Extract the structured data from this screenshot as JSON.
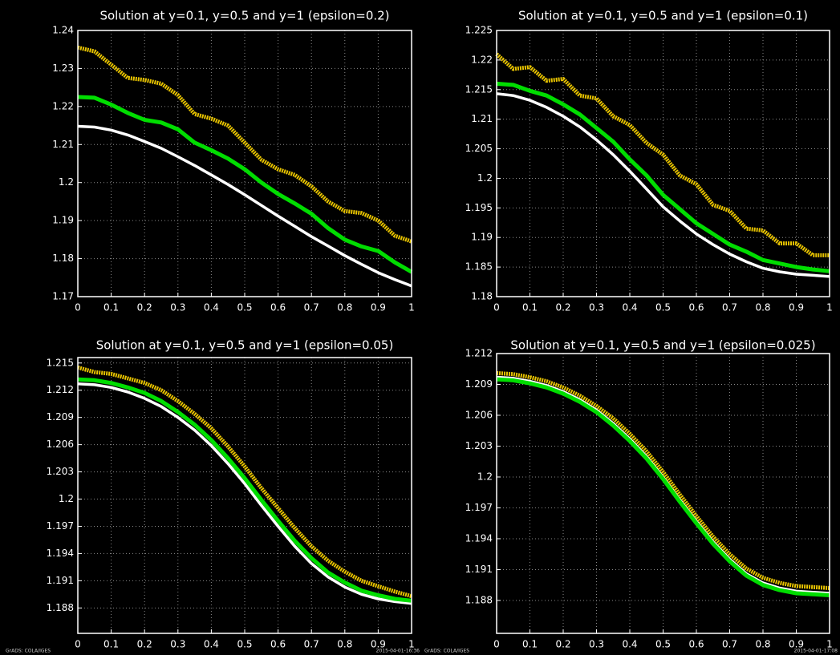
{
  "chart_data": [
    {
      "type": "line",
      "title": "Solution at y=0.1, y=0.5 and y=1 (epsilon=0.2)",
      "x": [
        0,
        0.05,
        0.1,
        0.15,
        0.2,
        0.25,
        0.3,
        0.35,
        0.4,
        0.45,
        0.5,
        0.55,
        0.6,
        0.65,
        0.7,
        0.75,
        0.8,
        0.85,
        0.9,
        0.95,
        1
      ],
      "series": [
        {
          "color": "#ffffff",
          "values": [
            1.2148,
            1.2146,
            1.2138,
            1.2125,
            1.2108,
            1.209,
            1.2068,
            1.2045,
            1.202,
            1.1995,
            1.1968,
            1.194,
            1.1912,
            1.1885,
            1.1858,
            1.1833,
            1.1808,
            1.1785,
            1.1763,
            1.1745,
            1.1728
          ]
        },
        {
          "color": "#00dd00",
          "values": [
            1.2225,
            1.2223,
            1.2205,
            1.2183,
            1.2165,
            1.2158,
            1.214,
            1.2105,
            1.2085,
            1.2063,
            1.2035,
            1.2,
            1.197,
            1.1945,
            1.1918,
            1.188,
            1.185,
            1.1832,
            1.182,
            1.179,
            1.1765
          ]
        },
        {
          "color": "#e6c200",
          "values": [
            1.2355,
            1.2345,
            1.231,
            1.2275,
            1.227,
            1.226,
            1.223,
            1.218,
            1.2168,
            1.215,
            1.2105,
            1.206,
            1.2035,
            1.202,
            1.199,
            1.195,
            1.1925,
            1.192,
            1.19,
            1.186,
            1.1845
          ]
        }
      ],
      "xlim": [
        0,
        1
      ],
      "xticks": [
        0,
        0.1,
        0.2,
        0.3,
        0.4,
        0.5,
        0.6,
        0.7,
        0.8,
        0.9,
        1
      ],
      "ylim": [
        1.17,
        1.24
      ],
      "yticks": [
        1.17,
        1.18,
        1.19,
        1.2,
        1.21,
        1.22,
        1.23,
        1.24
      ],
      "grid": true
    },
    {
      "type": "line",
      "title": "Solution at y=0.1, y=0.5 and y=1 (epsilon=0.1)",
      "x": [
        0,
        0.05,
        0.1,
        0.15,
        0.2,
        0.25,
        0.3,
        0.35,
        0.4,
        0.45,
        0.5,
        0.55,
        0.6,
        0.65,
        0.7,
        0.75,
        0.8,
        0.85,
        0.9,
        0.95,
        1
      ],
      "series": [
        {
          "color": "#ffffff",
          "values": [
            1.2143,
            1.214,
            1.2132,
            1.212,
            1.2105,
            1.2087,
            1.2065,
            1.204,
            1.2012,
            1.1982,
            1.1952,
            1.1928,
            1.1906,
            1.1888,
            1.1872,
            1.1859,
            1.1848,
            1.1842,
            1.1838,
            1.1836,
            1.1834
          ]
        },
        {
          "color": "#00dd00",
          "values": [
            1.216,
            1.2158,
            1.2148,
            1.214,
            1.2125,
            1.2108,
            1.2085,
            1.2062,
            1.2032,
            1.2005,
            1.1972,
            1.1948,
            1.1924,
            1.1906,
            1.1888,
            1.1876,
            1.1862,
            1.1856,
            1.185,
            1.1846,
            1.1843
          ]
        },
        {
          "color": "#e6c200",
          "values": [
            1.221,
            1.2185,
            1.2188,
            1.2165,
            1.2168,
            1.214,
            1.2135,
            1.2105,
            1.209,
            1.206,
            1.204,
            1.2005,
            1.199,
            1.1955,
            1.1945,
            1.1915,
            1.1912,
            1.189,
            1.189,
            1.187,
            1.187
          ]
        }
      ],
      "xlim": [
        0,
        1
      ],
      "xticks": [
        0,
        0.1,
        0.2,
        0.3,
        0.4,
        0.5,
        0.6,
        0.7,
        0.8,
        0.9,
        1
      ],
      "ylim": [
        1.18,
        1.225
      ],
      "yticks": [
        1.18,
        1.185,
        1.19,
        1.195,
        1.2,
        1.205,
        1.21,
        1.215,
        1.22,
        1.225
      ],
      "grid": true
    },
    {
      "type": "line",
      "title": "Solution at y=0.1, y=0.5 and y=1 (epsilon=0.05)",
      "credit": "GrADS: COLA/IGES",
      "timestamp": "2015-04-01-16:36",
      "x": [
        0,
        0.05,
        0.1,
        0.15,
        0.2,
        0.25,
        0.3,
        0.35,
        0.4,
        0.45,
        0.5,
        0.55,
        0.6,
        0.65,
        0.7,
        0.75,
        0.8,
        0.85,
        0.9,
        0.95,
        1
      ],
      "series": [
        {
          "color": "#ffffff",
          "values": [
            1.2127,
            1.2126,
            1.2123,
            1.2118,
            1.2111,
            1.2102,
            1.209,
            1.2076,
            1.2059,
            1.2039,
            1.2017,
            1.1993,
            1.197,
            1.1948,
            1.1929,
            1.1914,
            1.1903,
            1.1895,
            1.189,
            1.1887,
            1.1885
          ]
        },
        {
          "color": "#00dd00",
          "values": [
            1.2132,
            1.2131,
            1.2128,
            1.2123,
            1.2117,
            1.2108,
            1.2096,
            1.2082,
            1.2065,
            1.2045,
            1.2023,
            1.1999,
            1.1976,
            1.1954,
            1.1935,
            1.1919,
            1.1908,
            1.1899,
            1.1894,
            1.189,
            1.1888
          ]
        },
        {
          "color": "#e6c200",
          "values": [
            1.2145,
            1.214,
            1.2138,
            1.2133,
            1.2128,
            1.212,
            1.2108,
            1.2094,
            1.2078,
            1.2058,
            1.2036,
            1.2012,
            1.199,
            1.1968,
            1.1948,
            1.1932,
            1.192,
            1.191,
            1.1904,
            1.1898,
            1.1893
          ]
        }
      ],
      "xlim": [
        0,
        1
      ],
      "xticks": [
        0,
        0.1,
        0.2,
        0.3,
        0.4,
        0.5,
        0.6,
        0.7,
        0.8,
        0.9,
        1
      ],
      "ylim": [
        1.1852,
        1.2156
      ],
      "yticks": [
        1.188,
        1.191,
        1.194,
        1.197,
        1.2,
        1.203,
        1.206,
        1.209,
        1.212,
        1.215
      ],
      "grid": true
    },
    {
      "type": "line",
      "title": "Solution at y=0.1, y=0.5 and y=1 (epsilon=0.025)",
      "credit": "GrADS: COLA/IGES",
      "timestamp": "2015-04-01-17:08",
      "x": [
        0,
        0.05,
        0.1,
        0.15,
        0.2,
        0.25,
        0.3,
        0.35,
        0.4,
        0.45,
        0.5,
        0.55,
        0.6,
        0.65,
        0.7,
        0.75,
        0.8,
        0.85,
        0.9,
        0.95,
        1
      ],
      "series": [
        {
          "color": "#ffffff",
          "values": [
            1.2097,
            1.2096,
            1.2093,
            1.2089,
            1.2083,
            1.2075,
            1.2065,
            1.2052,
            1.2037,
            1.202,
            1.2,
            1.1978,
            1.1957,
            1.1937,
            1.192,
            1.1906,
            1.1897,
            1.1892,
            1.1889,
            1.1888,
            1.1887
          ]
        },
        {
          "color": "#00dd00",
          "values": [
            1.2095,
            1.2094,
            1.2091,
            1.2087,
            1.2081,
            1.2073,
            1.2063,
            1.205,
            1.2035,
            1.2018,
            1.1998,
            1.1976,
            1.1955,
            1.1935,
            1.1918,
            1.1904,
            1.1895,
            1.189,
            1.1887,
            1.1886,
            1.1885
          ]
        },
        {
          "color": "#e6c200",
          "values": [
            1.2101,
            1.21,
            1.2097,
            1.2093,
            1.2087,
            1.2079,
            1.2069,
            1.2057,
            1.2042,
            1.2025,
            1.2005,
            1.1983,
            1.1962,
            1.1942,
            1.1925,
            1.1911,
            1.1902,
            1.1897,
            1.1894,
            1.1893,
            1.1892
          ]
        }
      ],
      "xlim": [
        0,
        1
      ],
      "xticks": [
        0,
        0.1,
        0.2,
        0.3,
        0.4,
        0.5,
        0.6,
        0.7,
        0.8,
        0.9,
        1
      ],
      "ylim": [
        1.1848,
        1.212
      ],
      "yticks": [
        1.188,
        1.191,
        1.194,
        1.197,
        1.2,
        1.203,
        1.206,
        1.209,
        1.212
      ],
      "grid": true
    }
  ]
}
